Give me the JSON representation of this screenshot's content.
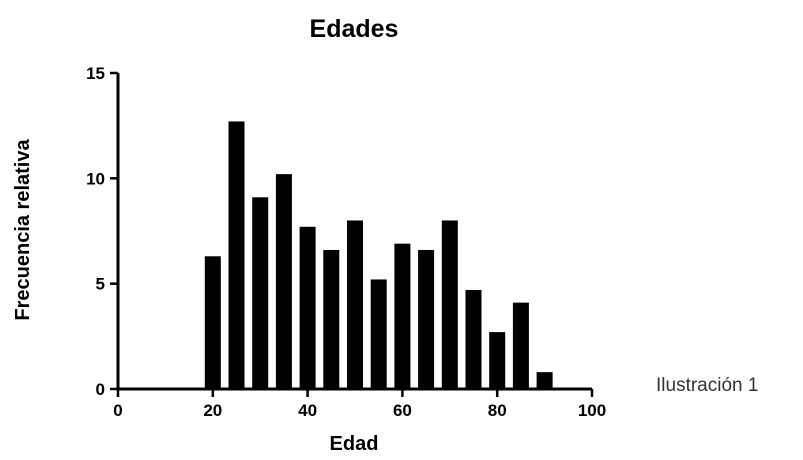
{
  "caption": "Ilustración 1",
  "chart_data": {
    "type": "bar",
    "title": "Edades",
    "xlabel": "Edad",
    "ylabel": "Frecuencia relativa",
    "xlim": [
      0,
      100
    ],
    "ylim": [
      0,
      15
    ],
    "x_ticks": [
      0,
      20,
      40,
      60,
      80,
      100
    ],
    "y_ticks": [
      0,
      5,
      10,
      15
    ],
    "bin_width": 5,
    "grid": false,
    "legend": "none",
    "bar_color": "#000000",
    "x": [
      20,
      25,
      30,
      35,
      40,
      45,
      50,
      55,
      60,
      65,
      70,
      75,
      80,
      85,
      90
    ],
    "values": [
      6.3,
      12.7,
      9.1,
      10.2,
      7.7,
      6.6,
      8.0,
      5.2,
      6.9,
      6.6,
      8.0,
      4.7,
      2.7,
      4.1,
      0.8
    ]
  }
}
